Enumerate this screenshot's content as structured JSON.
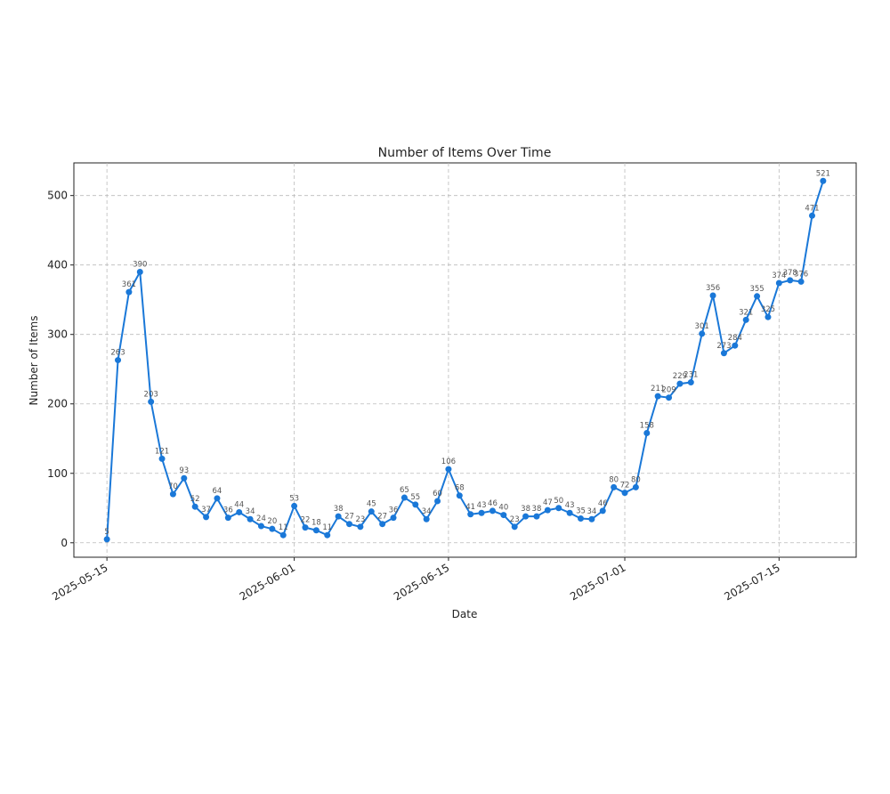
{
  "chart_data": {
    "type": "line",
    "title": "Number of Items Over Time",
    "x_label": "Date",
    "y_label": "Number of Items",
    "x": [
      "2025-05-15",
      "2025-05-16",
      "2025-05-17",
      "2025-05-18",
      "2025-05-19",
      "2025-05-20",
      "2025-05-21",
      "2025-05-22",
      "2025-05-23",
      "2025-05-24",
      "2025-05-25",
      "2025-05-26",
      "2025-05-27",
      "2025-05-28",
      "2025-05-29",
      "2025-05-30",
      "2025-05-31",
      "2025-06-01",
      "2025-06-02",
      "2025-06-03",
      "2025-06-04",
      "2025-06-05",
      "2025-06-06",
      "2025-06-07",
      "2025-06-08",
      "2025-06-09",
      "2025-06-10",
      "2025-06-11",
      "2025-06-12",
      "2025-06-13",
      "2025-06-14",
      "2025-06-15",
      "2025-06-16",
      "2025-06-17",
      "2025-06-18",
      "2025-06-19",
      "2025-06-20",
      "2025-06-21",
      "2025-06-22",
      "2025-06-23",
      "2025-06-24",
      "2025-06-25",
      "2025-06-26",
      "2025-06-27",
      "2025-06-28",
      "2025-06-29",
      "2025-06-30",
      "2025-07-01",
      "2025-07-02",
      "2025-07-03",
      "2025-07-04",
      "2025-07-05",
      "2025-07-06",
      "2025-07-07",
      "2025-07-08",
      "2025-07-09",
      "2025-07-10",
      "2025-07-11",
      "2025-07-12",
      "2025-07-13",
      "2025-07-14",
      "2025-07-15",
      "2025-07-16",
      "2025-07-17",
      "2025-07-18",
      "2025-07-19"
    ],
    "values": [
      5,
      263,
      361,
      390,
      203,
      121,
      70,
      93,
      52,
      37,
      64,
      36,
      44,
      34,
      24,
      20,
      11,
      53,
      22,
      18,
      11,
      38,
      27,
      23,
      45,
      27,
      36,
      65,
      55,
      34,
      60,
      106,
      68,
      41,
      43,
      46,
      40,
      23,
      38,
      38,
      47,
      50,
      43,
      35,
      34,
      46,
      80,
      72,
      80,
      158,
      211,
      209,
      229,
      231,
      301,
      356,
      273,
      284,
      321,
      355,
      325,
      374,
      378,
      376,
      471,
      521
    ],
    "color": "#1a78d8",
    "xlim": [
      "2025-05-12",
      "2025-07-22"
    ],
    "xticks": [
      "2025-05-15",
      "2025-06-01",
      "2025-06-15",
      "2025-07-01",
      "2025-07-15"
    ],
    "ylim": [
      -20.8,
      547
    ],
    "yticks": [
      0,
      100,
      200,
      300,
      400,
      500
    ],
    "grid": true
  }
}
